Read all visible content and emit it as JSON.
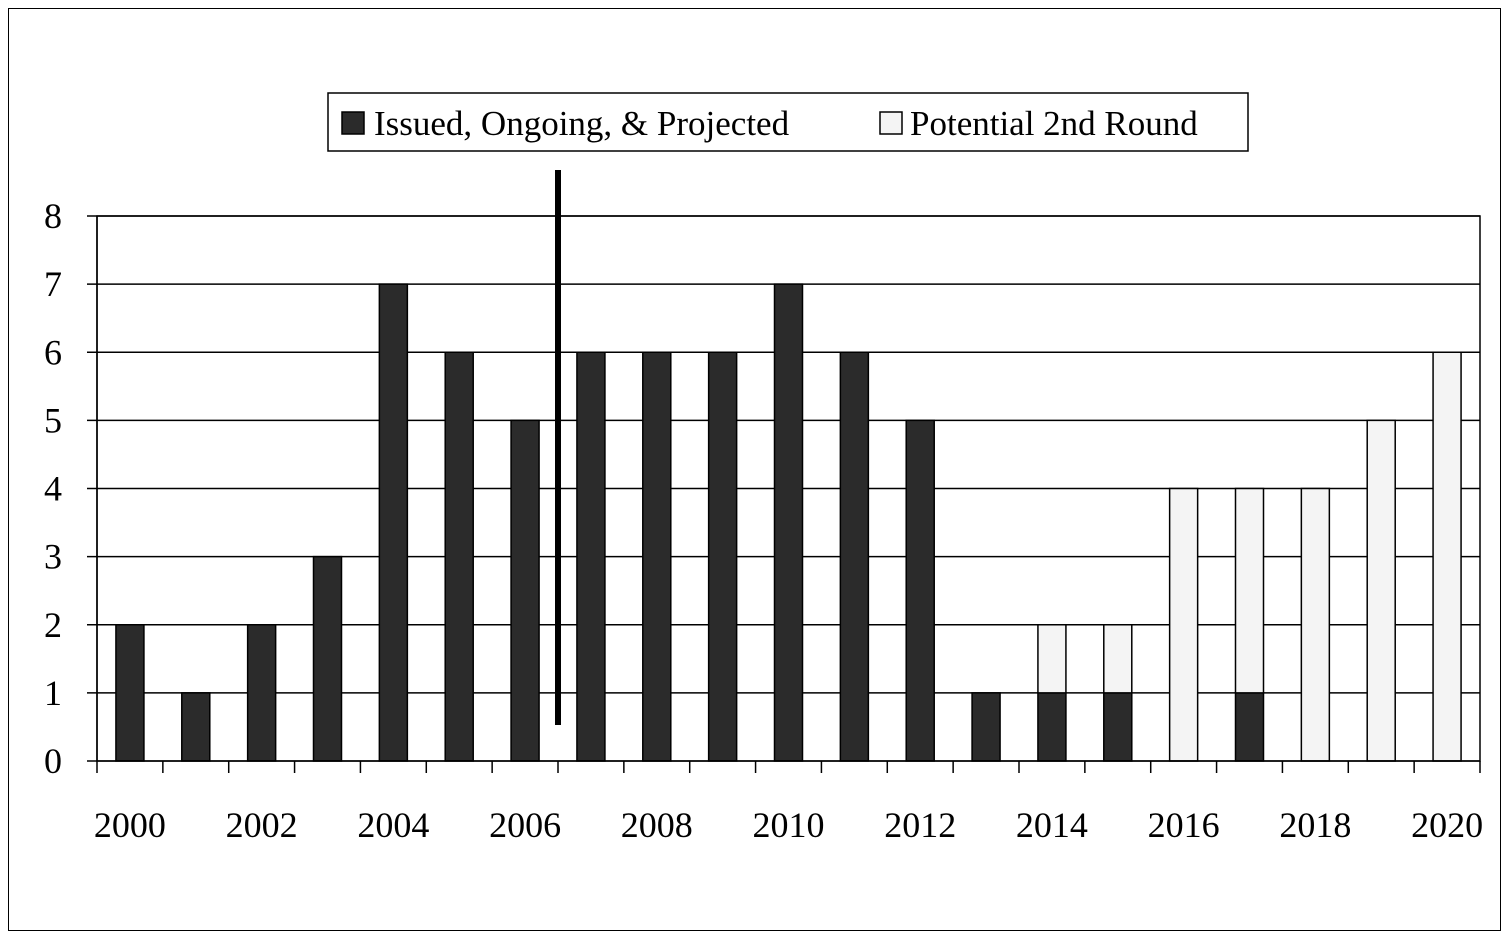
{
  "chart_data": {
    "type": "bar",
    "stacked": true,
    "x": [
      2000,
      2001,
      2002,
      2003,
      2004,
      2005,
      2006,
      2007,
      2008,
      2009,
      2010,
      2011,
      2012,
      2013,
      2014,
      2015,
      2016,
      2017,
      2018,
      2019,
      2020
    ],
    "series": [
      {
        "name": "Issued, Ongoing, & Projected",
        "color": "#2b2b2b",
        "values": [
          2,
          1,
          2,
          3,
          7,
          6,
          5,
          6,
          6,
          6,
          7,
          6,
          5,
          1,
          1,
          1,
          0,
          1,
          0,
          0,
          0
        ]
      },
      {
        "name": "Potential 2nd Round",
        "color": "#f4f4f4",
        "values": [
          0,
          0,
          0,
          0,
          0,
          0,
          0,
          0,
          0,
          0,
          0,
          0,
          0,
          0,
          1,
          1,
          4,
          3,
          4,
          5,
          6
        ]
      }
    ],
    "x_tick_labels": [
      "2000",
      "2002",
      "2004",
      "2006",
      "2008",
      "2010",
      "2012",
      "2014",
      "2016",
      "2018",
      "2020"
    ],
    "y_tick_labels": [
      "0",
      "1",
      "2",
      "3",
      "4",
      "5",
      "6",
      "7",
      "8"
    ],
    "ylim": [
      0,
      8
    ],
    "grid": true,
    "legend_position": "top-center",
    "vertical_marker_x": 2006.5,
    "title": "",
    "xlabel": "",
    "ylabel": ""
  }
}
